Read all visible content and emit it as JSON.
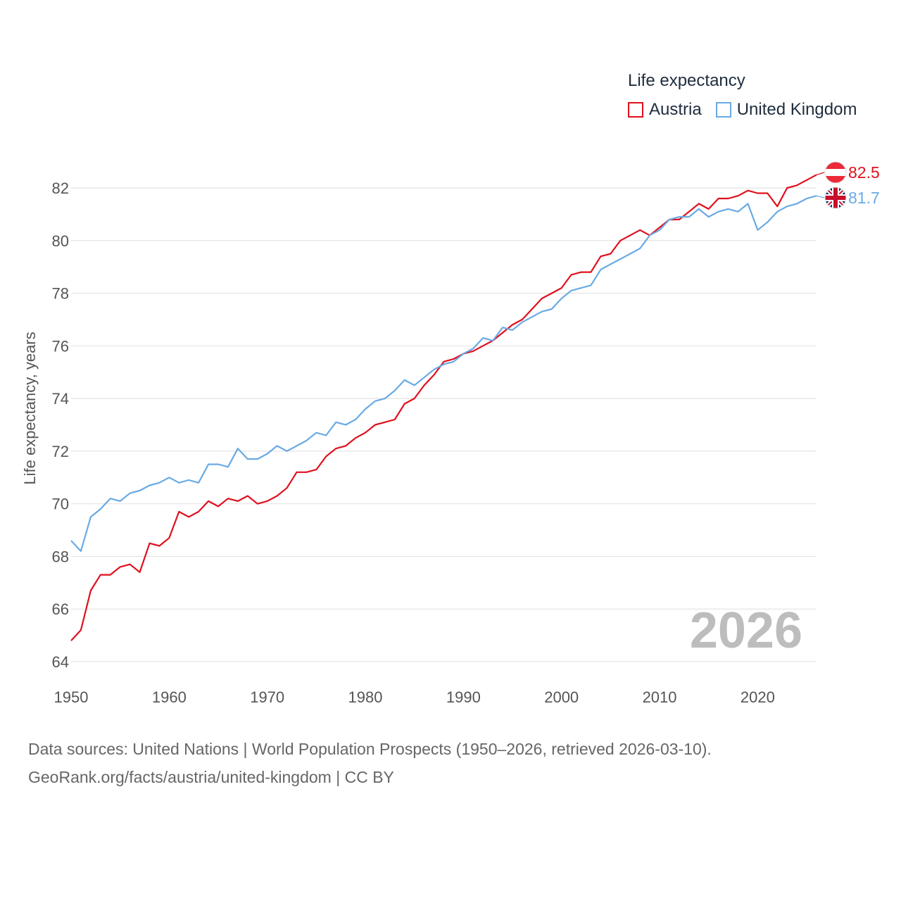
{
  "legend": {
    "title": "Life expectancy",
    "items": [
      {
        "label": "Austria",
        "color": "#e0101e"
      },
      {
        "label": "United Kingdom",
        "color": "#6aaae4"
      }
    ]
  },
  "footer": {
    "line1": "Data sources: United Nations | World Population Prospects (1950–2026, retrieved 2026-03-10).",
    "line2": "GeoRank.org/facts/austria/united-kingdom | CC BY"
  },
  "chart_data": {
    "type": "line",
    "title": "Life expectancy",
    "xlabel": "",
    "ylabel": "Life expectancy, years",
    "xlim": [
      1950,
      2026
    ],
    "ylim": [
      64,
      83
    ],
    "x_ticks": [
      1950,
      1960,
      1970,
      1980,
      1990,
      2000,
      2010,
      2020
    ],
    "y_ticks": [
      64,
      66,
      68,
      70,
      72,
      74,
      76,
      78,
      80,
      82
    ],
    "grid": true,
    "legend_position": "top-right",
    "year_label": "2026",
    "x": [
      1950,
      1951,
      1952,
      1953,
      1954,
      1955,
      1956,
      1957,
      1958,
      1959,
      1960,
      1961,
      1962,
      1963,
      1964,
      1965,
      1966,
      1967,
      1968,
      1969,
      1970,
      1971,
      1972,
      1973,
      1974,
      1975,
      1976,
      1977,
      1978,
      1979,
      1980,
      1981,
      1982,
      1983,
      1984,
      1985,
      1986,
      1987,
      1988,
      1989,
      1990,
      1991,
      1992,
      1993,
      1994,
      1995,
      1996,
      1997,
      1998,
      1999,
      2000,
      2001,
      2002,
      2003,
      2004,
      2005,
      2006,
      2007,
      2008,
      2009,
      2010,
      2011,
      2012,
      2013,
      2014,
      2015,
      2016,
      2017,
      2018,
      2019,
      2020,
      2021,
      2022,
      2023,
      2024,
      2025,
      2026
    ],
    "series": [
      {
        "name": "Austria",
        "color": "#e0101e",
        "end_label": "82.5",
        "flag": "austria",
        "values": [
          64.8,
          65.2,
          66.7,
          67.3,
          67.3,
          67.6,
          67.7,
          67.4,
          68.5,
          68.4,
          68.7,
          69.7,
          69.5,
          69.7,
          70.1,
          69.9,
          70.2,
          70.1,
          70.3,
          70.0,
          70.1,
          70.3,
          70.6,
          71.2,
          71.2,
          71.3,
          71.8,
          72.1,
          72.2,
          72.5,
          72.7,
          73.0,
          73.1,
          73.2,
          73.8,
          74.0,
          74.5,
          74.9,
          75.4,
          75.5,
          75.7,
          75.8,
          76.0,
          76.2,
          76.5,
          76.8,
          77.0,
          77.4,
          77.8,
          78.0,
          78.2,
          78.7,
          78.8,
          78.8,
          79.4,
          79.5,
          80.0,
          80.2,
          80.4,
          80.2,
          80.5,
          80.8,
          80.8,
          81.1,
          81.4,
          81.2,
          81.6,
          81.6,
          81.7,
          81.9,
          81.8,
          81.8,
          81.3,
          82.0,
          82.1,
          82.3,
          82.5
        ]
      },
      {
        "name": "United Kingdom",
        "color": "#6aaae4",
        "end_label": "81.7",
        "flag": "united-kingdom",
        "values": [
          68.6,
          68.2,
          69.5,
          69.8,
          70.2,
          70.1,
          70.4,
          70.5,
          70.7,
          70.8,
          71.0,
          70.8,
          70.9,
          70.8,
          71.5,
          71.5,
          71.4,
          72.1,
          71.7,
          71.7,
          71.9,
          72.2,
          72.0,
          72.2,
          72.4,
          72.7,
          72.6,
          73.1,
          73.0,
          73.2,
          73.6,
          73.9,
          74.0,
          74.3,
          74.7,
          74.5,
          74.8,
          75.1,
          75.3,
          75.4,
          75.7,
          75.9,
          76.3,
          76.2,
          76.7,
          76.6,
          76.9,
          77.1,
          77.3,
          77.4,
          77.8,
          78.1,
          78.2,
          78.3,
          78.9,
          79.1,
          79.3,
          79.5,
          79.7,
          80.2,
          80.4,
          80.8,
          80.9,
          80.9,
          81.2,
          80.9,
          81.1,
          81.2,
          81.1,
          81.4,
          80.4,
          80.7,
          81.1,
          81.3,
          81.4,
          81.6,
          81.7
        ]
      }
    ]
  }
}
